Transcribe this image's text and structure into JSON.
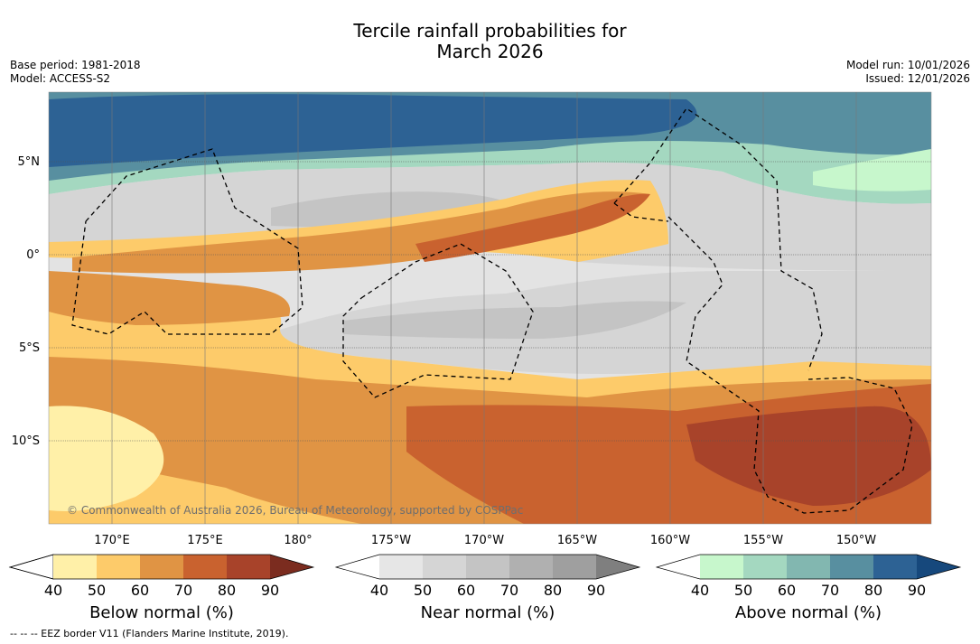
{
  "header": {
    "title_line1": "Tercile rainfall probabilities for",
    "title_line2": "March 2026",
    "base_period": "Base period: 1981-2018",
    "model": "Model: ACCESS-S2",
    "model_run": "Model run: 10/01/2026",
    "issued": "Issued: 12/01/2026"
  },
  "map": {
    "lat_labels": [
      "5°N",
      "0°",
      "5°S",
      "10°S"
    ],
    "lon_labels": [
      "170°E",
      "175°E",
      "180°",
      "175°W",
      "170°W",
      "165°W",
      "160°W",
      "155°W",
      "150°W"
    ],
    "copyright": "© Commonwealth of Australia 2026, Bureau of Meteorology, supported by COSPPac"
  },
  "colorbars": [
    {
      "title": "Below normal (%)",
      "ticks": [
        "40",
        "50",
        "60",
        "70",
        "80",
        "90"
      ],
      "colors": [
        "#fff0a8",
        "#fdcb6a",
        "#e09444",
        "#c9622f",
        "#a8432a",
        "#7b2c1f"
      ]
    },
    {
      "title": "Near normal (%)",
      "ticks": [
        "40",
        "50",
        "60",
        "70",
        "80",
        "90"
      ],
      "colors": [
        "#e6e6e6",
        "#d5d5d5",
        "#c4c4c4",
        "#b0b0b0",
        "#9f9f9f",
        "#7f7f7f"
      ]
    },
    {
      "title": "Above normal (%)",
      "ticks": [
        "40",
        "50",
        "60",
        "70",
        "80",
        "90"
      ],
      "colors": [
        "#c7f7cc",
        "#a4d8c0",
        "#82b7b0",
        "#588fa0",
        "#2d6294",
        "#16487c"
      ]
    }
  ],
  "footer": {
    "eez_note": "--  --  -- EEZ border V11 (Flanders Marine Institute, 2019)."
  }
}
